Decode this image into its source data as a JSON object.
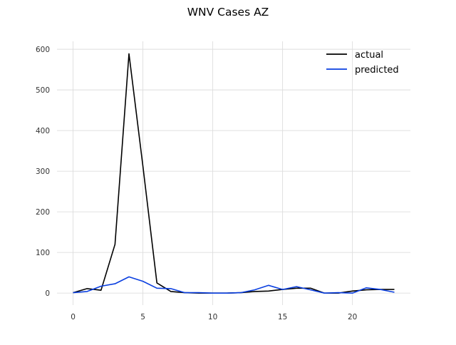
{
  "chart_data": {
    "type": "line",
    "title": "WNV Cases AZ",
    "xlabel": "",
    "ylabel": "",
    "xlim": [
      -1.15,
      24.15
    ],
    "ylim": [
      -29.5,
      619.5
    ],
    "xticks": [
      0,
      5,
      10,
      15,
      20
    ],
    "yticks": [
      0,
      100,
      200,
      300,
      400,
      500,
      600
    ],
    "grid": true,
    "legend_position": "top-right",
    "series": [
      {
        "name": "actual",
        "color": "#000000",
        "x": [
          0,
          1,
          2,
          3,
          4,
          5,
          6,
          7,
          8,
          9,
          10,
          11,
          12,
          13,
          14,
          15,
          16,
          17,
          18,
          19,
          20,
          21,
          22,
          23
        ],
        "y": [
          1,
          11,
          7,
          120,
          589,
          312,
          25,
          4,
          1,
          0,
          0,
          0,
          1,
          4,
          5,
          9,
          12,
          12,
          0,
          0,
          5,
          8,
          9,
          9
        ]
      },
      {
        "name": "predicted",
        "color": "#0a3fe0",
        "x": [
          0,
          1,
          2,
          3,
          4,
          5,
          6,
          7,
          8,
          9,
          10,
          11,
          12,
          13,
          14,
          15,
          16,
          17,
          18,
          19,
          20,
          21,
          22,
          23
        ],
        "y": [
          1,
          4,
          17,
          23,
          40,
          29,
          12,
          11,
          1,
          1,
          0,
          0,
          1,
          8,
          19,
          9,
          16,
          8,
          0,
          1,
          0,
          13,
          9,
          2
        ]
      }
    ]
  }
}
